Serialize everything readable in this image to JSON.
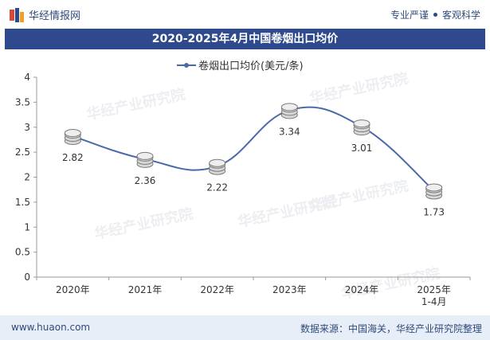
{
  "header": {
    "logo_text": "华经情报网",
    "tagline_left": "专业严谨",
    "tagline_right": "客观科学"
  },
  "watermark": "华经产业研究院",
  "chart_data": {
    "type": "line",
    "title": "2020-2025年4月中国卷烟出口均价",
    "legend": "卷烟出口均价(美元/条)",
    "categories": [
      "2020年",
      "2021年",
      "2022年",
      "2023年",
      "2024年",
      "2025年\n1-4月"
    ],
    "values": [
      2.82,
      2.36,
      2.22,
      3.34,
      3.01,
      1.73
    ],
    "value_labels": [
      "2.82",
      "2.36",
      "2.22",
      "3.34",
      "3.01",
      "1.73"
    ],
    "yticks": [
      "0",
      "0.5",
      "1",
      "1.5",
      "2",
      "2.5",
      "3",
      "3.5",
      "4"
    ],
    "ylim": [
      0,
      4
    ],
    "xlabel": "",
    "ylabel": "",
    "grid": false,
    "colors": {
      "line": "#4a6aa8",
      "axis": "#999999",
      "title_bg": "#2e4a8c"
    }
  },
  "footer": {
    "website": "www.huaon.com",
    "source": "数据来源：中国海关，华经产业研究院整理"
  }
}
